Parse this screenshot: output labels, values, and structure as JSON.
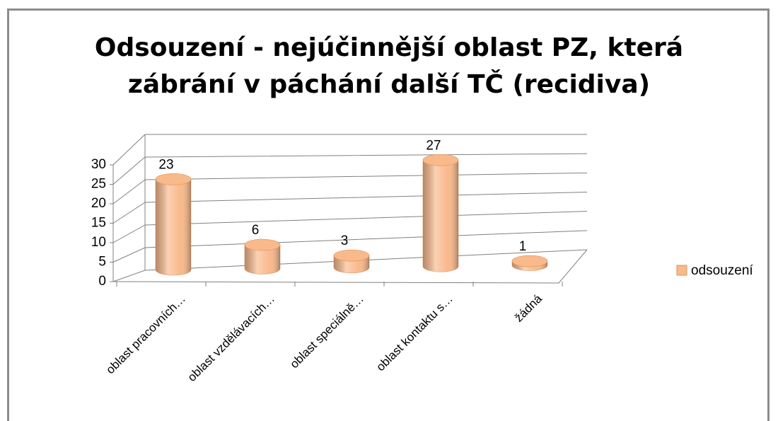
{
  "chart_data": {
    "type": "bar3d",
    "title": "Odsouzení - nejúčinnější oblast PZ, která zábrání v páchání další TČ (recidiva)",
    "categories": [
      "oblast pracovních…",
      "oblast vzdělávacích…",
      "oblast speciálně…",
      "oblast kontaktu s…",
      "žádná"
    ],
    "series": [
      {
        "name": "odsouzení",
        "color": "#f9b98b",
        "values": [
          23,
          6,
          3,
          27,
          1
        ]
      }
    ],
    "ylim": [
      0,
      30
    ],
    "yticks": [
      0,
      5,
      10,
      15,
      20,
      25,
      30
    ],
    "grid": true,
    "legend": "right"
  }
}
